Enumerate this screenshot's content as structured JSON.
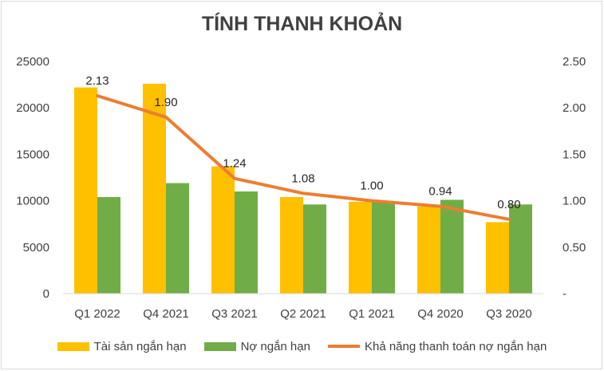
{
  "chart_data": {
    "type": "bar",
    "title": "TÍNH THANH KHOẢN",
    "categories": [
      "Q1 2022",
      "Q4 2021",
      "Q3 2021",
      "Q2 2021",
      "Q1 2021",
      "Q4 2020",
      "Q3 2020"
    ],
    "series": [
      {
        "name": "Tài sản ngắn hạn",
        "type": "bar",
        "axis": "left",
        "color": "#FFC000",
        "values": [
          22200,
          22600,
          13700,
          10400,
          9900,
          9400,
          7700
        ]
      },
      {
        "name": "Nợ ngắn hạn",
        "type": "bar",
        "axis": "left",
        "color": "#70AD47",
        "values": [
          10400,
          11900,
          11000,
          9600,
          9900,
          10100,
          9600
        ]
      },
      {
        "name": "Khả năng thanh toán nợ ngắn hạn",
        "type": "line",
        "axis": "right",
        "color": "#ED7D31",
        "values": [
          2.13,
          1.9,
          1.24,
          1.08,
          1.0,
          0.94,
          0.8
        ],
        "data_labels": [
          "2.13",
          "1.90",
          "1.24",
          "1.08",
          "1.00",
          "0.94",
          "0.80"
        ]
      }
    ],
    "y_left": {
      "ylim": [
        0,
        25000
      ],
      "ticks": [
        "0",
        "5000",
        "10000",
        "15000",
        "20000",
        "25000"
      ]
    },
    "y_right": {
      "ylim": [
        0,
        2.5
      ],
      "ticks": [
        "-",
        "0.50",
        "1.00",
        "1.50",
        "2.00",
        "2.50"
      ]
    },
    "grid": false,
    "legend_position": "bottom"
  }
}
